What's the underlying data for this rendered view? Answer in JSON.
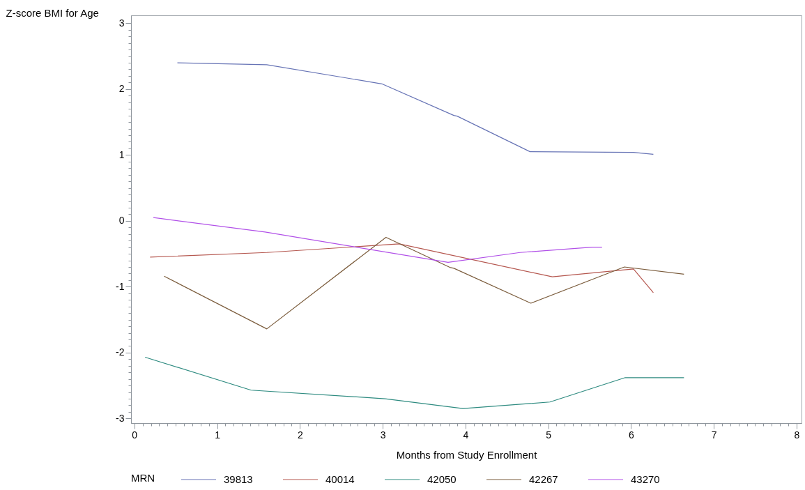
{
  "chart_data": {
    "type": "line",
    "xlabel": "Months from Study Enrollment",
    "ylabel": "Z-score BMI for Age",
    "legend_title": "MRN",
    "legend": "bottom",
    "grid": false,
    "marker": "none",
    "line_style": "solid",
    "xlim": [
      -0.04,
      8.06
    ],
    "ylim": [
      -3.07,
      3.12
    ],
    "xticks": [
      0,
      {
        "value": 0.1,
        "label": null
      },
      {
        "value": 0.2,
        "label": null
      },
      {
        "value": 0.3,
        "label": null
      },
      {
        "value": 0.4,
        "label": null
      },
      {
        "value": 0.5,
        "label": null
      },
      {
        "value": 0.6,
        "label": null
      },
      {
        "value": 0.7,
        "label": null
      },
      {
        "value": 0.8,
        "label": null
      },
      {
        "value": 0.9,
        "label": null
      },
      1,
      {
        "value": 1.1,
        "label": null
      },
      {
        "value": 1.2,
        "label": null
      },
      {
        "value": 1.3,
        "label": null
      },
      {
        "value": 1.4,
        "label": null
      },
      {
        "value": 1.5,
        "label": null
      },
      {
        "value": 1.6,
        "label": null
      },
      {
        "value": 1.7,
        "label": null
      },
      {
        "value": 1.8,
        "label": null
      },
      {
        "value": 1.9,
        "label": null
      },
      2,
      {
        "value": 2.1,
        "label": null
      },
      {
        "value": 2.2,
        "label": null
      },
      {
        "value": 2.3,
        "label": null
      },
      {
        "value": 2.4,
        "label": null
      },
      {
        "value": 2.5,
        "label": null
      },
      {
        "value": 2.6,
        "label": null
      },
      {
        "value": 2.7,
        "label": null
      },
      {
        "value": 2.8,
        "label": null
      },
      {
        "value": 2.9,
        "label": null
      },
      3,
      {
        "value": 3.1,
        "label": null
      },
      {
        "value": 3.2,
        "label": null
      },
      {
        "value": 3.3,
        "label": null
      },
      {
        "value": 3.4,
        "label": null
      },
      {
        "value": 3.5,
        "label": null
      },
      {
        "value": 3.6,
        "label": null
      },
      {
        "value": 3.7,
        "label": null
      },
      {
        "value": 3.8,
        "label": null
      },
      {
        "value": 3.9,
        "label": null
      },
      4,
      {
        "value": 4.1,
        "label": null
      },
      {
        "value": 4.2,
        "label": null
      },
      {
        "value": 4.3,
        "label": null
      },
      {
        "value": 4.4,
        "label": null
      },
      {
        "value": 4.5,
        "label": null
      },
      {
        "value": 4.6,
        "label": null
      },
      {
        "value": 4.7,
        "label": null
      },
      {
        "value": 4.8,
        "label": null
      },
      {
        "value": 4.9,
        "label": null
      },
      5,
      {
        "value": 5.1,
        "label": null
      },
      {
        "value": 5.2,
        "label": null
      },
      {
        "value": 5.3,
        "label": null
      },
      {
        "value": 5.4,
        "label": null
      },
      {
        "value": 5.5,
        "label": null
      },
      {
        "value": 5.6,
        "label": null
      },
      {
        "value": 5.7,
        "label": null
      },
      {
        "value": 5.8,
        "label": null
      },
      {
        "value": 5.9,
        "label": null
      },
      6,
      {
        "value": 6.1,
        "label": null
      },
      {
        "value": 6.2,
        "label": null
      },
      {
        "value": 6.3,
        "label": null
      },
      {
        "value": 6.4,
        "label": null
      },
      {
        "value": 6.5,
        "label": null
      },
      {
        "value": 6.6,
        "label": null
      },
      {
        "value": 6.7,
        "label": null
      },
      {
        "value": 6.8,
        "label": null
      },
      {
        "value": 6.9,
        "label": null
      },
      7,
      {
        "value": 7.1,
        "label": null
      },
      {
        "value": 7.2,
        "label": null
      },
      {
        "value": 7.3,
        "label": null
      },
      {
        "value": 7.4,
        "label": null
      },
      {
        "value": 7.5,
        "label": null
      },
      {
        "value": 7.6,
        "label": null
      },
      {
        "value": 7.7,
        "label": null
      },
      {
        "value": 7.8,
        "label": null
      },
      {
        "value": 7.9,
        "label": null
      },
      8
    ],
    "yticks": [
      -3,
      {
        "value": -2.9,
        "label": null
      },
      {
        "value": -2.8,
        "label": null
      },
      {
        "value": -2.7,
        "label": null
      },
      {
        "value": -2.6,
        "label": null
      },
      {
        "value": -2.5,
        "label": null
      },
      {
        "value": -2.4,
        "label": null
      },
      {
        "value": -2.3,
        "label": null
      },
      {
        "value": -2.2,
        "label": null
      },
      {
        "value": -2.1,
        "label": null
      },
      -2,
      {
        "value": -1.9,
        "label": null
      },
      {
        "value": -1.8,
        "label": null
      },
      {
        "value": -1.7,
        "label": null
      },
      {
        "value": -1.6,
        "label": null
      },
      {
        "value": -1.5,
        "label": null
      },
      {
        "value": -1.4,
        "label": null
      },
      {
        "value": -1.3,
        "label": null
      },
      {
        "value": -1.2,
        "label": null
      },
      {
        "value": -1.1,
        "label": null
      },
      -1,
      {
        "value": -0.9,
        "label": null
      },
      {
        "value": -0.8,
        "label": null
      },
      {
        "value": -0.7,
        "label": null
      },
      {
        "value": -0.6,
        "label": null
      },
      {
        "value": -0.5,
        "label": null
      },
      {
        "value": -0.4,
        "label": null
      },
      {
        "value": -0.3,
        "label": null
      },
      {
        "value": -0.2,
        "label": null
      },
      {
        "value": -0.1,
        "label": null
      },
      0,
      {
        "value": 0.1,
        "label": null
      },
      {
        "value": 0.2,
        "label": null
      },
      {
        "value": 0.3,
        "label": null
      },
      {
        "value": 0.4,
        "label": null
      },
      {
        "value": 0.5,
        "label": null
      },
      {
        "value": 0.6,
        "label": null
      },
      {
        "value": 0.7,
        "label": null
      },
      {
        "value": 0.8,
        "label": null
      },
      {
        "value": 0.9,
        "label": null
      },
      1,
      {
        "value": 1.1,
        "label": null
      },
      {
        "value": 1.2,
        "label": null
      },
      {
        "value": 1.3,
        "label": null
      },
      {
        "value": 1.4,
        "label": null
      },
      {
        "value": 1.5,
        "label": null
      },
      {
        "value": 1.6,
        "label": null
      },
      {
        "value": 1.7,
        "label": null
      },
      {
        "value": 1.8,
        "label": null
      },
      {
        "value": 1.9,
        "label": null
      },
      2,
      {
        "value": 2.1,
        "label": null
      },
      {
        "value": 2.2,
        "label": null
      },
      {
        "value": 2.3,
        "label": null
      },
      {
        "value": 2.4,
        "label": null
      },
      {
        "value": 2.5,
        "label": null
      },
      {
        "value": 2.6,
        "label": null
      },
      {
        "value": 2.7,
        "label": null
      },
      {
        "value": 2.8,
        "label": null
      },
      {
        "value": 2.9,
        "label": null
      },
      3
    ],
    "series": [
      {
        "name": "39813",
        "color": "#6673b5",
        "x": [
          0.52,
          1.6,
          2.99,
          3.86,
          3.9,
          4.78,
          6.03,
          6.27
        ],
        "values": [
          2.4,
          2.37,
          2.08,
          1.6,
          1.59,
          1.05,
          1.04,
          1.01
        ]
      },
      {
        "name": "40014",
        "color": "#b5574f",
        "x": [
          0.19,
          1.6,
          3.2,
          5.05,
          6.03,
          6.27
        ],
        "values": [
          -0.55,
          -0.48,
          -0.35,
          -0.85,
          -0.73,
          -1.09
        ]
      },
      {
        "name": "42050",
        "color": "#2e8b80",
        "x": [
          0.13,
          1.41,
          3.03,
          3.97,
          5.02,
          5.93,
          6.64
        ],
        "values": [
          -2.07,
          -2.57,
          -2.7,
          -2.85,
          -2.75,
          -2.38,
          -2.38
        ]
      },
      {
        "name": "42267",
        "color": "#7b5c3c",
        "x": [
          0.36,
          1.6,
          3.04,
          3.82,
          3.86,
          4.79,
          5.92,
          6.64
        ],
        "values": [
          -0.84,
          -1.64,
          -0.25,
          -0.71,
          -0.72,
          -1.25,
          -0.7,
          -0.81
        ]
      },
      {
        "name": "43270",
        "color": "#b150e8",
        "x": [
          0.23,
          1.58,
          3.79,
          4.66,
          5.53,
          5.65
        ],
        "values": [
          0.05,
          -0.17,
          -0.63,
          -0.48,
          -0.4,
          -0.4
        ]
      }
    ]
  }
}
